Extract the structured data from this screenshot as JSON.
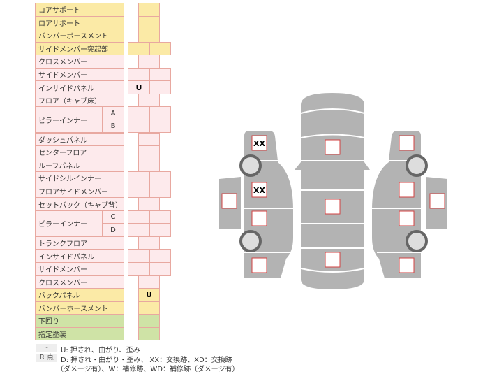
{
  "rows": [
    {
      "label": "コアサポート",
      "color": "yellow",
      "cells": 1,
      "marks": [
        ""
      ]
    },
    {
      "label": "ロアサポート",
      "color": "yellow",
      "cells": 1,
      "marks": [
        ""
      ]
    },
    {
      "label": "バンパーボースメント",
      "color": "yellow",
      "cells": 1,
      "marks": [
        ""
      ]
    },
    {
      "label": "サイドメンバー突起部",
      "color": "yellow",
      "cells": 2,
      "marks": [
        "",
        ""
      ]
    },
    {
      "label": "クロスメンバー",
      "color": "pink",
      "cells": 1,
      "marks": [
        ""
      ]
    },
    {
      "label": "サイドメンバー",
      "color": "pink",
      "cells": 2,
      "marks": [
        "",
        ""
      ]
    },
    {
      "label": "インサイドパネル",
      "color": "pink",
      "cells": 2,
      "marks": [
        "U",
        ""
      ]
    },
    {
      "label": "フロア（キャブ床）",
      "color": "pink",
      "cells": 1,
      "marks": [
        ""
      ]
    },
    {
      "label": "ピラーインナー",
      "sub": "A",
      "color": "pink",
      "cells": 2,
      "marks": [
        "",
        ""
      ]
    },
    {
      "label": "",
      "sub": "B",
      "color": "pink",
      "cells": 2,
      "marks": [
        "",
        ""
      ]
    },
    {
      "label": "ダッシュパネル",
      "color": "pink",
      "cells": 1,
      "marks": [
        ""
      ]
    },
    {
      "label": "センターフロア",
      "color": "pink",
      "cells": 1,
      "marks": [
        ""
      ]
    },
    {
      "label": "ルーフパネル",
      "color": "pink",
      "cells": 1,
      "marks": [
        ""
      ]
    },
    {
      "label": "サイドシルインナー",
      "color": "pink",
      "cells": 2,
      "marks": [
        "",
        ""
      ]
    },
    {
      "label": "フロアサイドメンバー",
      "color": "pink",
      "cells": 2,
      "marks": [
        "",
        ""
      ]
    },
    {
      "label": "セットバック（キャブ背）",
      "color": "pink",
      "cells": 1,
      "marks": [
        ""
      ]
    },
    {
      "label": "ピラーインナー",
      "sub": "C",
      "color": "pink",
      "cells": 2,
      "marks": [
        "",
        ""
      ]
    },
    {
      "label": "",
      "sub": "D",
      "color": "pink",
      "cells": 2,
      "marks": [
        "",
        ""
      ]
    },
    {
      "label": "トランクフロア",
      "color": "pink",
      "cells": 1,
      "marks": [
        ""
      ]
    },
    {
      "label": "インサイドパネル",
      "color": "pink",
      "cells": 2,
      "marks": [
        "",
        ""
      ]
    },
    {
      "label": "サイドメンバー",
      "color": "pink",
      "cells": 2,
      "marks": [
        "",
        ""
      ]
    },
    {
      "label": "クロスメンバー",
      "color": "pink",
      "cells": 1,
      "marks": [
        ""
      ]
    },
    {
      "label": "バックパネル",
      "color": "yellow",
      "cells": 1,
      "marks": [
        "U"
      ]
    },
    {
      "label": "バンパーホースメント",
      "color": "yellow",
      "cells": 1,
      "marks": [
        ""
      ]
    },
    {
      "label": "下回り",
      "color": "green",
      "cells": 1,
      "marks": [
        ""
      ]
    },
    {
      "label": "指定塗装",
      "color": "green",
      "cells": 1,
      "marks": [
        ""
      ]
    }
  ],
  "legend": [
    {
      "key": "-",
      "text": "U: 押され、曲がり、歪み"
    },
    {
      "key": "R 点",
      "text": "D: 押され・曲がり・歪み、 XX：交換跡、XD：交換跡"
    },
    {
      "key": "",
      "text": "（ダメージ有）、W：補修跡、WD：補修跡（ダメージ有）"
    }
  ],
  "diagram": {
    "marks": [
      "XX",
      "XX"
    ]
  },
  "colors": {
    "yellow": "#fbeaa6",
    "pink": "#fdeaec",
    "green": "#cfe3a6",
    "border": "#e8a8a0",
    "body": "#b3b3b3"
  }
}
